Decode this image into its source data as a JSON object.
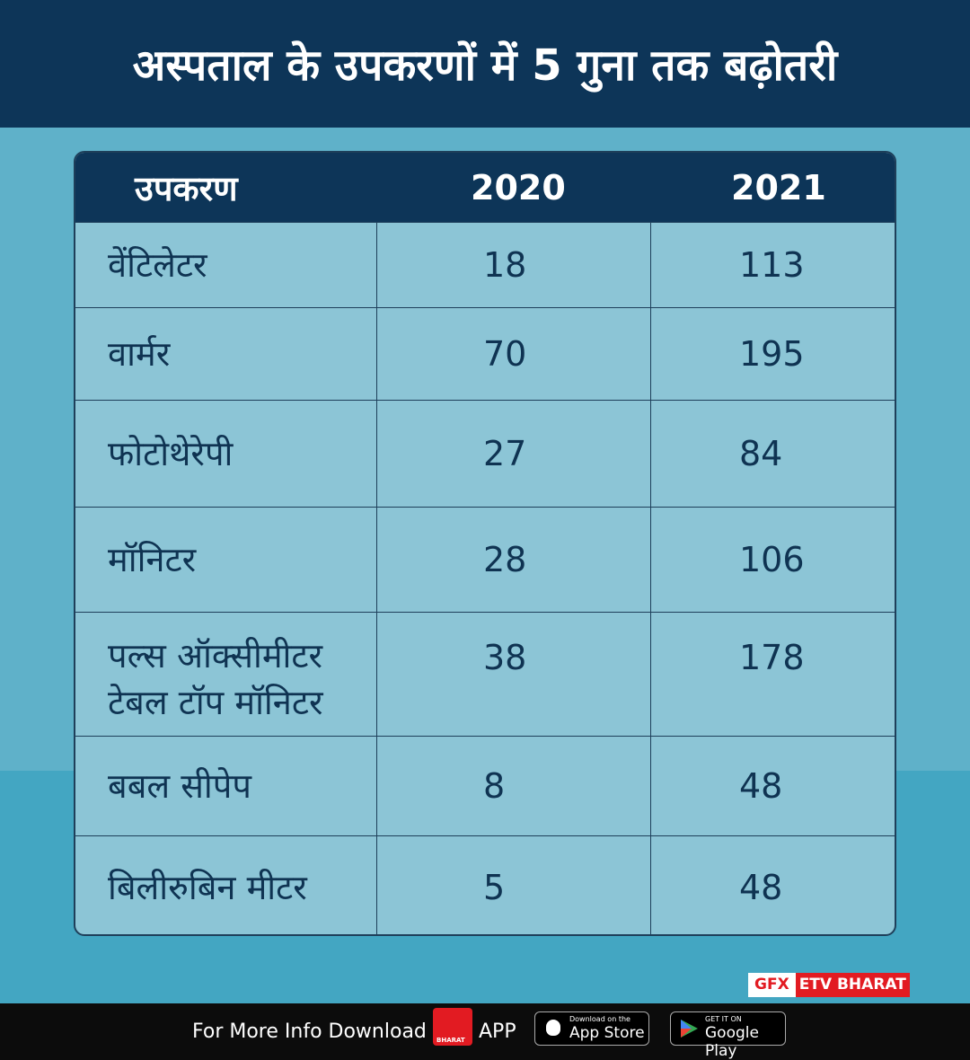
{
  "header": {
    "title": "अस्पताल के उपकरणों में 5 गुना तक बढ़ोतरी"
  },
  "table": {
    "columns": [
      "उपकरण",
      "2020",
      "2021"
    ],
    "rows": [
      [
        "वेंटिलेटर",
        18,
        113
      ],
      [
        "वार्मर",
        70,
        195
      ],
      [
        "फोटोथेरेपी",
        27,
        84
      ],
      [
        "मॉनिटर",
        28,
        106
      ],
      [
        "पल्स ऑक्सीमीटर टेबल टॉप मॉनिटर",
        38,
        178
      ],
      [
        "बबल सीपेप",
        8,
        48
      ],
      [
        "बिलीरुबिन मीटर",
        5,
        48
      ]
    ]
  },
  "credit": {
    "gfx": "GFX",
    "brand": "ETV BHARAT"
  },
  "footer": {
    "text": "For More Info Download",
    "logo_text": "BHARAT",
    "app": "APP",
    "appstore_small": "Download on the",
    "appstore": "App Store",
    "googleplay_small": "GET IT ON",
    "googleplay": "Google Play"
  }
}
